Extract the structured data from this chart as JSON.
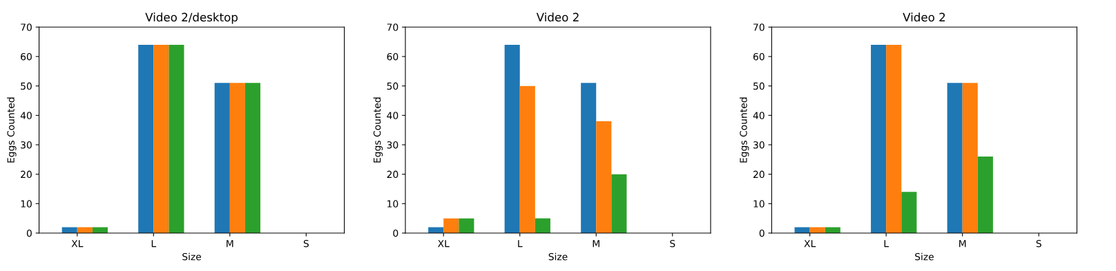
{
  "chart_data": [
    {
      "type": "bar",
      "title": "Video 2/desktop",
      "xlabel": "Size",
      "ylabel": "Eggs Counted",
      "categories": [
        "XL",
        "L",
        "M",
        "S"
      ],
      "ylim": [
        0,
        70
      ],
      "yticks": [
        0,
        10,
        20,
        30,
        40,
        50,
        60,
        70
      ],
      "grid": false,
      "series": [
        {
          "color": "#1f77b4",
          "values": [
            2,
            64,
            51,
            0
          ]
        },
        {
          "color": "#ff7f0e",
          "values": [
            2,
            64,
            51,
            0
          ]
        },
        {
          "color": "#2ca02c",
          "values": [
            2,
            64,
            51,
            0
          ]
        }
      ]
    },
    {
      "type": "bar",
      "title": "Video 2",
      "xlabel": "Size",
      "ylabel": "Eggs Counted",
      "categories": [
        "XL",
        "L",
        "M",
        "S"
      ],
      "ylim": [
        0,
        70
      ],
      "yticks": [
        0,
        10,
        20,
        30,
        40,
        50,
        60,
        70
      ],
      "grid": false,
      "series": [
        {
          "color": "#1f77b4",
          "values": [
            2,
            64,
            51,
            0
          ]
        },
        {
          "color": "#ff7f0e",
          "values": [
            5,
            50,
            38,
            0
          ]
        },
        {
          "color": "#2ca02c",
          "values": [
            5,
            5,
            20,
            0
          ]
        }
      ]
    },
    {
      "type": "bar",
      "title": "Video 2",
      "xlabel": "Size",
      "ylabel": "Eggs Counted",
      "categories": [
        "XL",
        "L",
        "M",
        "S"
      ],
      "ylim": [
        0,
        70
      ],
      "yticks": [
        0,
        10,
        20,
        30,
        40,
        50,
        60,
        70
      ],
      "grid": false,
      "series": [
        {
          "color": "#1f77b4",
          "values": [
            2,
            64,
            51,
            0
          ]
        },
        {
          "color": "#ff7f0e",
          "values": [
            2,
            64,
            51,
            0
          ]
        },
        {
          "color": "#2ca02c",
          "values": [
            2,
            14,
            26,
            0
          ]
        }
      ]
    }
  ]
}
